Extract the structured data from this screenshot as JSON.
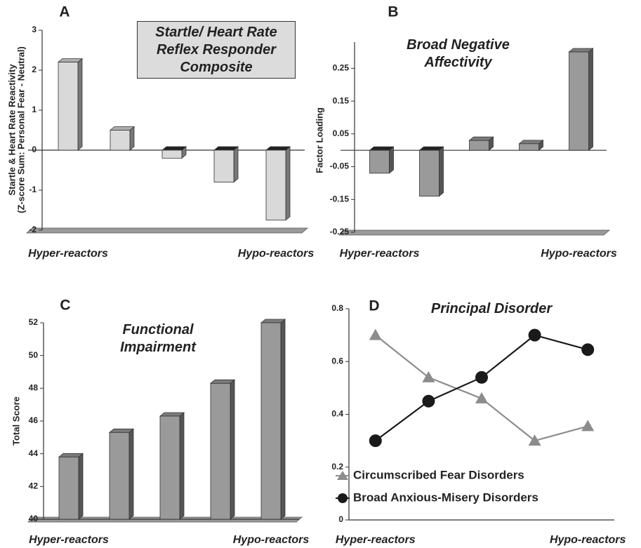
{
  "chart_data": [
    {
      "type": "bar",
      "label": "A",
      "title": "Startle/ Heart Rate Reflex Responder Composite",
      "ylabel": [
        "Startle & Heart Rate Reactivity",
        "(Z-score Sum: Personal Fear - Neutral)"
      ],
      "categories": [
        "Hyper-reactors",
        null,
        null,
        null,
        "Hypo-reactors"
      ],
      "values": [
        2.2,
        0.5,
        -0.2,
        -0.8,
        -1.75
      ],
      "color": "#d9d9d9",
      "ylim": [
        -2,
        3
      ],
      "yticks": [
        -2,
        -1,
        0,
        1,
        2,
        3
      ]
    },
    {
      "type": "bar",
      "label": "B",
      "title": "Broad Negative Affectivity",
      "ylabel": [
        "Factor Loading"
      ],
      "categories": [
        "Hyper-reactors",
        null,
        null,
        null,
        "Hypo-reactors"
      ],
      "values": [
        -0.07,
        -0.14,
        0.03,
        0.02,
        0.3
      ],
      "color": "#9a9a9a",
      "ylim": [
        -0.25,
        0.33
      ],
      "yticks": [
        -0.25,
        -0.15,
        -0.05,
        0.05,
        0.15,
        0.25
      ]
    },
    {
      "type": "bar",
      "label": "C",
      "title": "Functional Impairment",
      "ylabel": [
        "Total Score"
      ],
      "categories": [
        "Hyper-reactors",
        null,
        null,
        null,
        "Hypo-reactors"
      ],
      "values": [
        43.8,
        45.3,
        46.3,
        48.3,
        52
      ],
      "color": "#9a9a9a",
      "ylim": [
        40,
        52
      ],
      "yticks": [
        40,
        42,
        44,
        46,
        48,
        50,
        52
      ]
    },
    {
      "type": "line",
      "label": "D",
      "title": "Principal Disorder",
      "categories": [
        "Hyper-reactors",
        null,
        null,
        null,
        "Hypo-reactors"
      ],
      "series": [
        {
          "name": "Circumscribed Fear Disorders",
          "color": "#8c8c8c",
          "marker": "triangle",
          "values": [
            0.7,
            0.54,
            0.46,
            0.3,
            0.355
          ]
        },
        {
          "name": "Broad Anxious-Misery Disorders",
          "color": "#1a1a1a",
          "marker": "circle",
          "values": [
            0.3,
            0.45,
            0.54,
            0.7,
            0.645
          ]
        }
      ],
      "ylim": [
        0,
        0.8
      ],
      "yticks": [
        0,
        0.2,
        0.4,
        0.6,
        0.8
      ]
    }
  ]
}
